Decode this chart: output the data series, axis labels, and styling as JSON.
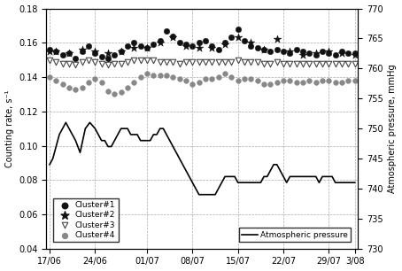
{
  "title": "",
  "ylabel_left": "Counting rate, s⁻¹",
  "ylabel_right": "Atmospheric pressure, mmHg",
  "xlabel": "",
  "ylim_left": [
    0.04,
    0.18
  ],
  "ylim_right": [
    730,
    770
  ],
  "yticks_left": [
    0.04,
    0.06,
    0.08,
    0.1,
    0.12,
    0.14,
    0.16,
    0.18
  ],
  "yticks_right": [
    730,
    735,
    740,
    745,
    750,
    755,
    760,
    765,
    770
  ],
  "xtick_labels": [
    "17/06",
    "24/06",
    "01/07",
    "08/07",
    "15/07",
    "22/07",
    "29/07",
    "3/08"
  ],
  "xtick_positions": [
    0,
    7,
    15,
    22,
    29,
    36,
    43,
    47
  ],
  "cluster1_x": [
    0,
    1,
    2,
    3,
    4,
    5,
    6,
    7,
    8,
    9,
    10,
    11,
    12,
    13,
    14,
    15,
    16,
    17,
    18,
    19,
    20,
    21,
    22,
    23,
    24,
    25,
    26,
    27,
    28,
    29,
    30,
    31,
    32,
    33,
    34,
    35,
    36,
    37,
    38,
    39,
    40,
    41,
    42,
    43,
    44,
    45,
    46,
    47
  ],
  "cluster1_y": [
    0.156,
    0.155,
    0.153,
    0.154,
    0.151,
    0.155,
    0.158,
    0.154,
    0.152,
    0.151,
    0.153,
    0.155,
    0.158,
    0.16,
    0.158,
    0.157,
    0.159,
    0.161,
    0.167,
    0.164,
    0.16,
    0.159,
    0.158,
    0.16,
    0.161,
    0.158,
    0.156,
    0.16,
    0.163,
    0.168,
    0.161,
    0.158,
    0.157,
    0.156,
    0.155,
    0.156,
    0.155,
    0.154,
    0.156,
    0.155,
    0.154,
    0.153,
    0.155,
    0.154,
    0.153,
    0.155,
    0.154,
    0.154
  ],
  "cluster1_marker": "o",
  "cluster1_color": "#111111",
  "cluster1_size": 22,
  "cluster1_label": "Cluster#1",
  "cluster2_x": [
    0,
    1,
    3,
    5,
    7,
    9,
    11,
    13,
    15,
    17,
    19,
    21,
    23,
    25,
    27,
    29,
    31,
    33,
    35,
    37,
    39,
    41,
    43,
    45,
    47
  ],
  "cluster2_y": [
    0.155,
    0.155,
    0.154,
    0.156,
    0.155,
    0.154,
    0.155,
    0.157,
    0.157,
    0.16,
    0.163,
    0.158,
    0.157,
    0.157,
    0.159,
    0.163,
    0.16,
    0.156,
    0.162,
    0.155,
    0.153,
    0.154,
    0.155,
    0.154,
    0.153
  ],
  "cluster2_marker": "*",
  "cluster2_color": "#111111",
  "cluster2_size": 45,
  "cluster2_label": "Cluster#2",
  "cluster3_x": [
    0,
    1,
    2,
    3,
    4,
    5,
    6,
    7,
    8,
    9,
    10,
    11,
    12,
    13,
    14,
    15,
    16,
    17,
    18,
    19,
    20,
    21,
    22,
    23,
    24,
    25,
    26,
    27,
    28,
    29,
    30,
    31,
    32,
    33,
    34,
    35,
    36,
    37,
    38,
    39,
    40,
    41,
    42,
    43,
    44,
    45,
    46,
    47
  ],
  "cluster3_y": [
    0.15,
    0.149,
    0.148,
    0.148,
    0.147,
    0.149,
    0.15,
    0.149,
    0.148,
    0.147,
    0.148,
    0.148,
    0.149,
    0.15,
    0.15,
    0.15,
    0.15,
    0.149,
    0.149,
    0.149,
    0.148,
    0.149,
    0.149,
    0.149,
    0.149,
    0.149,
    0.149,
    0.149,
    0.149,
    0.15,
    0.149,
    0.149,
    0.149,
    0.148,
    0.148,
    0.149,
    0.148,
    0.148,
    0.148,
    0.148,
    0.148,
    0.148,
    0.148,
    0.148,
    0.148,
    0.148,
    0.148,
    0.148
  ],
  "cluster3_marker": "v",
  "cluster3_color": "#ffffff",
  "cluster3_edgecolor": "#444444",
  "cluster3_size": 22,
  "cluster3_label": "Cluster#3",
  "cluster4_x": [
    0,
    1,
    2,
    3,
    4,
    5,
    6,
    7,
    8,
    9,
    10,
    11,
    12,
    13,
    14,
    15,
    16,
    17,
    18,
    19,
    20,
    21,
    22,
    23,
    24,
    25,
    26,
    27,
    28,
    29,
    30,
    31,
    32,
    33,
    34,
    35,
    36,
    37,
    38,
    39,
    40,
    41,
    42,
    43,
    44,
    45,
    46,
    47
  ],
  "cluster4_y": [
    0.14,
    0.138,
    0.136,
    0.134,
    0.133,
    0.134,
    0.137,
    0.139,
    0.137,
    0.132,
    0.13,
    0.131,
    0.134,
    0.137,
    0.14,
    0.142,
    0.141,
    0.141,
    0.141,
    0.14,
    0.139,
    0.138,
    0.136,
    0.137,
    0.139,
    0.139,
    0.14,
    0.142,
    0.14,
    0.138,
    0.139,
    0.139,
    0.138,
    0.136,
    0.136,
    0.137,
    0.138,
    0.138,
    0.137,
    0.137,
    0.138,
    0.137,
    0.138,
    0.138,
    0.137,
    0.137,
    0.138,
    0.138
  ],
  "cluster4_marker": "o",
  "cluster4_color": "#888888",
  "cluster4_size": 18,
  "cluster4_label": "Cluster#4",
  "pressure_x": [
    0,
    0.5,
    1,
    1.5,
    2,
    2.5,
    3,
    3.5,
    4,
    4.7,
    5.5,
    6.2,
    7,
    7.5,
    8,
    8.5,
    9,
    9.5,
    10,
    10.5,
    11,
    11.5,
    12,
    12.5,
    13,
    13.5,
    14,
    14.5,
    15,
    15.5,
    16,
    16.5,
    17,
    17.5,
    18,
    18.5,
    19,
    19.5,
    20,
    20.5,
    21,
    21.5,
    22,
    22.5,
    23,
    23.5,
    24,
    24.5,
    25,
    25.5,
    26,
    26.5,
    27,
    27.5,
    28,
    28.5,
    29,
    29.5,
    30,
    30.5,
    31,
    31.5,
    32,
    32.5,
    33,
    33.5,
    34,
    34.5,
    35,
    35.5,
    36,
    36.5,
    37,
    37.5,
    38,
    38.5,
    39,
    39.5,
    40,
    40.5,
    41,
    41.5,
    42,
    42.5,
    43,
    43.5,
    44,
    44.5,
    45,
    45.5,
    46,
    46.5,
    47
  ],
  "pressure_y": [
    744,
    745,
    747,
    749,
    750,
    751,
    750,
    749,
    748,
    746,
    750,
    751,
    750,
    749,
    748,
    748,
    747,
    747,
    748,
    749,
    750,
    750,
    750,
    749,
    749,
    749,
    748,
    748,
    748,
    748,
    749,
    749,
    750,
    750,
    749,
    748,
    747,
    746,
    745,
    744,
    743,
    742,
    741,
    740,
    739,
    739,
    739,
    739,
    739,
    739,
    740,
    741,
    742,
    742,
    742,
    742,
    741,
    741,
    741,
    741,
    741,
    741,
    741,
    741,
    742,
    742,
    743,
    744,
    744,
    743,
    742,
    741,
    742,
    742,
    742,
    742,
    742,
    742,
    742,
    742,
    742,
    741,
    742,
    742,
    742,
    742,
    741,
    741,
    741,
    741,
    741,
    741,
    741
  ],
  "pressure_color": "#000000",
  "pressure_label": "Atmospheric pressure",
  "pressure_linewidth": 1.2,
  "grid_color": "#aaaaaa",
  "grid_linestyle": "--",
  "background_color": "#ffffff",
  "figsize": [
    4.54,
    3.06
  ],
  "dpi": 100
}
